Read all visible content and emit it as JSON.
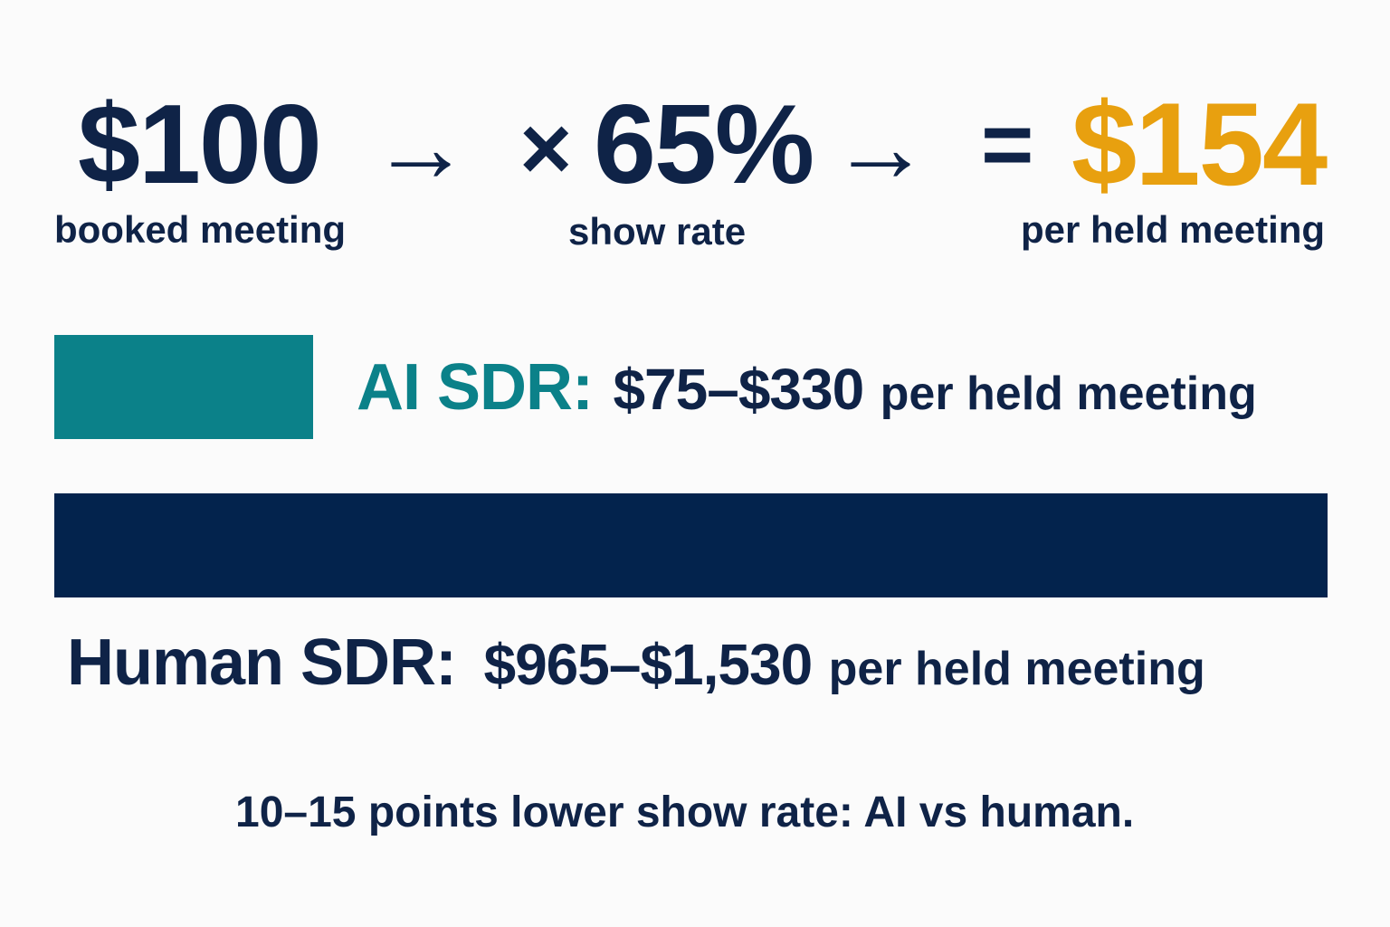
{
  "colors": {
    "navy": "#0f2347",
    "teal": "#0b8189",
    "gold": "#e8a00f",
    "bar_navy": "#03234d"
  },
  "equation": {
    "booked_value": "$100",
    "booked_label": "booked meeting",
    "arrow_1": "→",
    "multiply_sign": "×",
    "show_rate_value": "65%",
    "show_rate_label": "show rate",
    "arrow_2": "→",
    "equals_sign": "=",
    "result_value": "$154",
    "result_label": "per held meeting"
  },
  "comparison": {
    "ai": {
      "label": "AI SDR:",
      "range": "$75–$330",
      "unit": "per held meeting"
    },
    "human": {
      "label": "Human SDR:",
      "range": "$965–$1,530",
      "unit": "per held meeting"
    }
  },
  "footnote": "10–15 points lower show rate: AI vs human."
}
